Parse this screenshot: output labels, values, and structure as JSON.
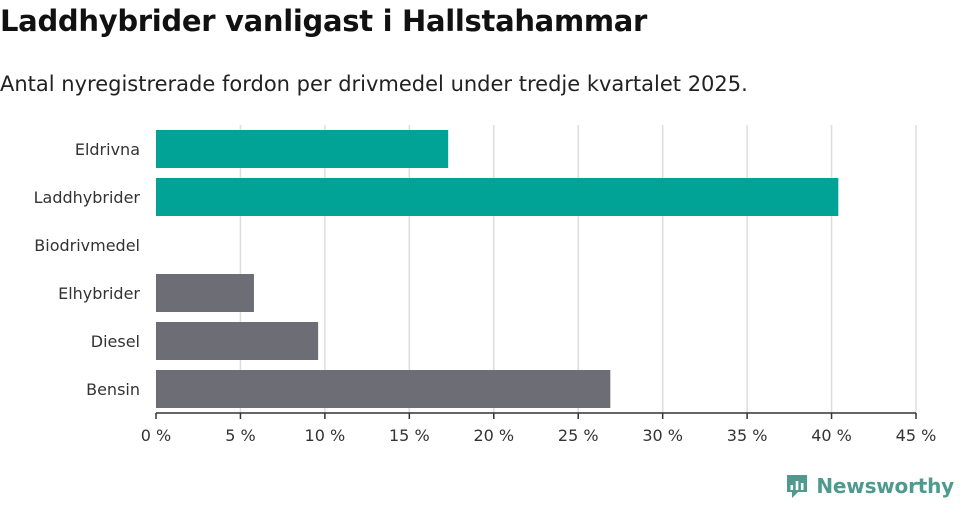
{
  "colors": {
    "accent": "#00a396",
    "neutral": "#6d6d75",
    "grid": "#dddddd",
    "axis": "#333333",
    "brand": "#4e9a8e"
  },
  "brand": {
    "name": "Newsworthy",
    "icon": "bar-chart-logo-icon"
  },
  "chart_data": {
    "type": "bar",
    "orientation": "horizontal",
    "title": "Laddhybrider vanligast i Hallstahammar",
    "subtitle": "Antal nyregistrerade fordon per drivmedel under tredje kvartalet 2025.",
    "categories": [
      "Eldrivna",
      "Laddhybrider",
      "Biodrivmedel",
      "Elhybrider",
      "Diesel",
      "Bensin"
    ],
    "values": [
      17.3,
      40.4,
      0,
      5.8,
      9.6,
      26.9
    ],
    "highlight": [
      true,
      true,
      true,
      false,
      false,
      false
    ],
    "xlim": [
      0,
      45
    ],
    "ticks": [
      0,
      5,
      10,
      15,
      20,
      25,
      30,
      35,
      40,
      45
    ],
    "tick_labels": [
      "0 %",
      "5 %",
      "10 %",
      "15 %",
      "20 %",
      "25 %",
      "30 %",
      "35 %",
      "40 %",
      "45 %"
    ],
    "grid": true,
    "xlabel": "",
    "ylabel": ""
  }
}
